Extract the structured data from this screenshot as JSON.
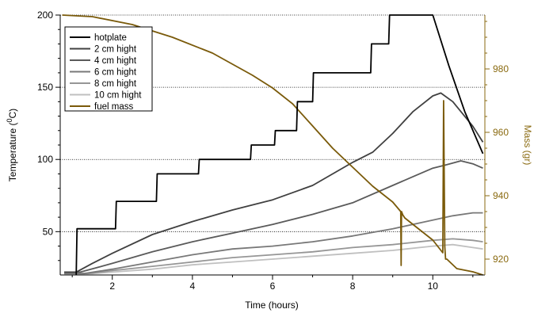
{
  "chart_data": {
    "type": "line",
    "xlabel": "Time (hours)",
    "ylabel_left": "Temperature (",
    "ylabel_left_sup": "0",
    "ylabel_left_end": "C)",
    "ylabel_right": "Mass (gr)",
    "xlim": [
      0.7,
      11.3
    ],
    "ylim_left": [
      20,
      200
    ],
    "ylim_right": [
      915,
      997
    ],
    "xticks": [
      2,
      4,
      6,
      8,
      10
    ],
    "xtick_labels": [
      "2",
      "4",
      "6",
      "8",
      "10"
    ],
    "yticks_left": [
      50,
      100,
      150,
      200
    ],
    "ytick_labels_left": [
      "50",
      "100",
      "150",
      "200"
    ],
    "yticks_right": [
      920,
      940,
      960,
      980
    ],
    "ytick_labels_right": [
      "920",
      "940",
      "960",
      "980"
    ],
    "gridlines_left": [
      50,
      100,
      150,
      200
    ],
    "legend_position": "top-left",
    "colors": {
      "hotplate": "#000000",
      "h2": "#404040",
      "h4": "#5a5a5a",
      "h6": "#787878",
      "h8": "#969696",
      "h10": "#c0c0c0",
      "fuel": "#7a5a0a",
      "right_axis": "#8a6a10"
    },
    "series": [
      {
        "name": "hotplate",
        "key": "hotplate",
        "axis": "left",
        "x": [
          1.1,
          1.12,
          2.08,
          2.1,
          3.1,
          3.12,
          4.15,
          4.17,
          5.45,
          5.47,
          6.05,
          6.07,
          6.6,
          6.62,
          7.0,
          7.02,
          8.45,
          8.47,
          8.9,
          8.92,
          10.0,
          10.4,
          10.8,
          11.25
        ],
        "y": [
          20,
          52,
          52,
          71,
          71,
          90,
          90,
          100,
          100,
          110,
          110,
          120,
          120,
          140,
          140,
          160,
          160,
          180,
          180,
          200,
          200,
          165,
          133,
          104
        ]
      },
      {
        "name": "2 cm hight",
        "key": "h2",
        "axis": "left",
        "x": [
          0.8,
          1.1,
          1.5,
          2,
          3,
          4,
          5,
          6,
          7,
          8,
          8.5,
          9,
          9.5,
          10,
          10.2,
          10.5,
          11,
          11.25
        ],
        "y": [
          22,
          22,
          28,
          35,
          48,
          57,
          65,
          72,
          82,
          98,
          105,
          118,
          133,
          144,
          146,
          140,
          123,
          112
        ]
      },
      {
        "name": "4 cm hight",
        "key": "h4",
        "axis": "left",
        "x": [
          0.8,
          1.2,
          2,
          3,
          4,
          5,
          6,
          7,
          8,
          9,
          9.5,
          10,
          10.3,
          10.7,
          11,
          11.25
        ],
        "y": [
          22,
          22,
          28,
          36,
          43,
          49,
          55,
          62,
          70,
          82,
          88,
          94,
          96,
          99,
          97,
          94
        ]
      },
      {
        "name": "6 cm hight",
        "key": "h6",
        "axis": "left",
        "x": [
          0.8,
          1.3,
          2,
          3,
          4,
          5,
          6,
          7,
          8,
          9,
          10,
          10.5,
          11,
          11.25
        ],
        "y": [
          21,
          21,
          24,
          29,
          34,
          38,
          40,
          43,
          47,
          52,
          58,
          61,
          63,
          63
        ]
      },
      {
        "name": "8 cm hight",
        "key": "h8",
        "axis": "left",
        "x": [
          0.8,
          1.4,
          2,
          3,
          4,
          5,
          6,
          7,
          8,
          9,
          10,
          10.5,
          11,
          11.25
        ],
        "y": [
          21,
          21,
          23,
          26,
          29,
          32,
          34,
          36,
          39,
          41,
          44,
          45,
          44,
          43
        ]
      },
      {
        "name": "10 cm hight",
        "key": "h10",
        "axis": "left",
        "x": [
          0.8,
          1.5,
          2,
          3,
          4,
          5,
          6,
          7,
          8,
          9,
          10,
          10.5,
          11,
          11.25
        ],
        "y": [
          21,
          21,
          22,
          24,
          27,
          29,
          31,
          33,
          35,
          37,
          40,
          41,
          39,
          38
        ]
      },
      {
        "name": "fuel mass",
        "key": "fuel",
        "axis": "right",
        "x": [
          0.75,
          1.5,
          2.5,
          3.5,
          4.5,
          5.5,
          6.0,
          6.5,
          7.0,
          7.5,
          8.0,
          8.5,
          9.0,
          9.2,
          9.21,
          9.22,
          9.25,
          9.3,
          9.4,
          9.6,
          10.0,
          10.25,
          10.27,
          10.3,
          10.32,
          10.35,
          10.6,
          11.0,
          11.25
        ],
        "y": [
          997,
          996.5,
          994,
          990,
          985,
          978,
          974,
          969,
          962,
          955,
          949,
          943,
          938,
          935,
          918,
          935,
          934,
          933,
          932,
          930,
          926,
          922,
          970,
          924,
          920,
          920,
          917,
          916,
          915
        ]
      }
    ]
  }
}
